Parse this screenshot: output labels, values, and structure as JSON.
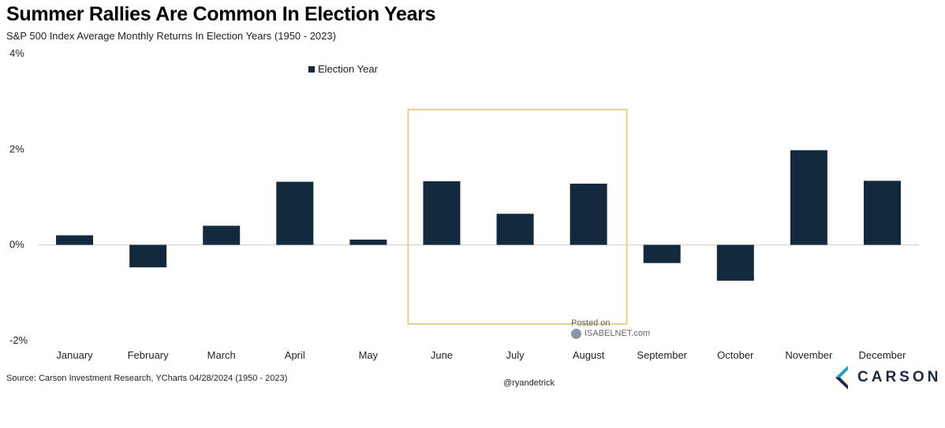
{
  "header": {
    "title": "Summer Rallies Are Common In Election Years",
    "subtitle": "S&P 500 Index Average Monthly Returns In Election Years (1950 - 2023)"
  },
  "footer": {
    "source": "Source: Carson Investment Research, YCharts 04/28/2024 (1950 - 2023)",
    "handle": "@ryandetrick",
    "watermark_line1": "Posted on",
    "watermark_line2": "ISABELNET.com",
    "logo_text": "CARSON"
  },
  "colors": {
    "bar": "#13293d",
    "highlight_box": "#e6d28f",
    "zero_line": "#d9d9d9",
    "logo_blue": "#1f9ad6",
    "logo_dark": "#1a2b40"
  },
  "chart_data": {
    "type": "bar",
    "categories": [
      "January",
      "February",
      "March",
      "April",
      "May",
      "June",
      "July",
      "August",
      "September",
      "October",
      "November",
      "December"
    ],
    "series": [
      {
        "name": "Election Year",
        "values": [
          0.2,
          -0.47,
          0.4,
          1.32,
          0.11,
          1.33,
          0.65,
          1.28,
          -0.38,
          -0.75,
          1.98,
          1.34
        ]
      }
    ],
    "ylim": [
      -2,
      4
    ],
    "yticks": [
      -2,
      0,
      2,
      4
    ],
    "ytick_labels": [
      "-2%",
      "0%",
      "2%",
      "4%"
    ],
    "legend": "Election Year",
    "legend_position": "top-center",
    "highlight_range": [
      "June",
      "August"
    ],
    "grid": false
  }
}
